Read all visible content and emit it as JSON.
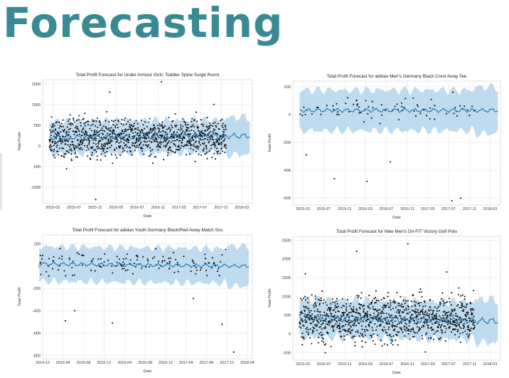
{
  "slide": {
    "title": "Forecasting"
  },
  "chart_data": [
    {
      "type": "scatter",
      "title": "Total Profit Forecast for Under Armour Girls' Toddler Spine Surge Runni",
      "xlabel": "Date",
      "ylabel": "Total Profit",
      "x_ticks": [
        "2015-03",
        "2015-07",
        "2015-11",
        "2016-03",
        "2016-07",
        "2016-11",
        "2017-03",
        "2017-07",
        "2017-11",
        "2018-03"
      ],
      "x_range": [
        "2015-01-01",
        "2018-05-01"
      ],
      "forecast_start": "2017-12-01",
      "y_ticks": [
        -1000,
        -500,
        0,
        500,
        1000,
        1500
      ],
      "ylim": [
        -1400,
        1600
      ],
      "series": [
        {
          "points_per_day": 1,
          "mean": 200,
          "spread": 280,
          "outliers": [
            [
              "2016-11-20",
              1550
            ],
            [
              "2015-11-05",
              -1300
            ],
            [
              "2016-01-25",
              1300
            ],
            [
              "2015-05-20",
              -560
            ],
            [
              "2017-09-20",
              1000
            ]
          ]
        }
      ],
      "forecast": {
        "trend": [
          200,
          220,
          240
        ],
        "band_halfwidth": 380
      },
      "grid": true
    },
    {
      "type": "scatter",
      "title": "Total Profit Forecast for adidas Men's Germany Black Crest Away Tee",
      "xlabel": "Date",
      "ylabel": "Total Profit",
      "x_ticks": [
        "2015-03",
        "2015-07",
        "2015-11",
        "2016-03",
        "2016-07",
        "2016-11",
        "2017-03",
        "2017-07",
        "2017-11",
        "2018-03"
      ],
      "x_range": [
        "2015-01-01",
        "2018-05-01"
      ],
      "forecast_start": "2017-12-01",
      "y_ticks": [
        -600,
        -400,
        -200,
        0,
        200
      ],
      "ylim": [
        -650,
        240
      ],
      "series": [
        {
          "points_per_day": 0.08,
          "mean": 40,
          "spread": 60,
          "outliers": [
            [
              "2015-09-01",
              -460
            ],
            [
              "2016-03-10",
              -480
            ],
            [
              "2017-07-20",
              -620
            ],
            [
              "2017-09-10",
              -600
            ],
            [
              "2016-07-25",
              -340
            ],
            [
              "2015-03-20",
              -290
            ]
          ]
        }
      ],
      "forecast": {
        "trend": [
          30,
          30,
          30
        ],
        "band_halfwidth": 140
      },
      "grid": true
    },
    {
      "type": "scatter",
      "title": "Total Profit Forecast for adidas Youth Germany Black/Red Away Match Soc",
      "xlabel": "Date",
      "ylabel": "Total Profit",
      "x_ticks": [
        "2014-12",
        "2015-04",
        "2015-08",
        "2015-12",
        "2016-04",
        "2016-08",
        "2016-12",
        "2017-04",
        "2017-08",
        "2017-12",
        "2018-04"
      ],
      "x_range": [
        "2014-12-01",
        "2018-05-01"
      ],
      "forecast_start": "2017-12-01",
      "y_ticks": [
        -800,
        -600,
        -400,
        -200,
        0,
        200
      ],
      "ylim": [
        -830,
        280
      ],
      "series": [
        {
          "points_per_day": 0.12,
          "mean": 20,
          "spread": 70,
          "outliers": [
            [
              "2015-04-15",
              -490
            ],
            [
              "2015-06-10",
              -400
            ],
            [
              "2016-01-20",
              -510
            ],
            [
              "2017-11-01",
              -520
            ],
            [
              "2018-01-10",
              -770
            ],
            [
              "2017-05-15",
              -290
            ]
          ]
        }
      ],
      "forecast": {
        "trend": [
          20,
          10,
          0
        ],
        "band_halfwidth": 150
      },
      "grid": true
    },
    {
      "type": "scatter",
      "title": "Total Profit Forecast for Nike Men's Dri-FIT Victory Golf Polo",
      "xlabel": "Date",
      "ylabel": "Total Profit",
      "x_ticks": [
        "2015-03",
        "2015-07",
        "2015-11",
        "2016-03",
        "2016-07",
        "2016-11",
        "2017-03",
        "2017-07",
        "2017-11",
        "2018-03"
      ],
      "x_range": [
        "2015-01-01",
        "2018-05-01"
      ],
      "forecast_start": "2017-12-01",
      "y_ticks": [
        -500,
        0,
        500,
        1000,
        1500,
        2000,
        2500
      ],
      "ylim": [
        -700,
        2600
      ],
      "series": [
        {
          "points_per_day": 1,
          "mean": 420,
          "spread": 360,
          "outliers": [
            [
              "2016-11-05",
              2400
            ],
            [
              "2016-01-10",
              2200
            ],
            [
              "2015-03-15",
              1600
            ],
            [
              "2017-06-20",
              1650
            ],
            [
              "2015-07-10",
              -500
            ],
            [
              "2017-02-15",
              -480
            ]
          ]
        }
      ],
      "forecast": {
        "trend": [
          420,
          380,
          340
        ],
        "band_halfwidth": 480
      },
      "grid": true
    }
  ]
}
